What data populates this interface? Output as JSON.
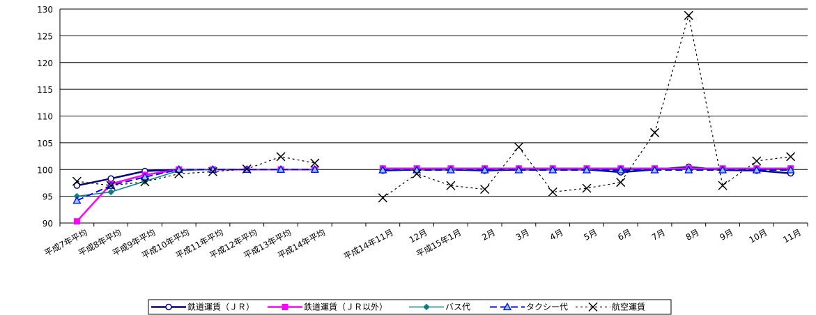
{
  "chart_data": {
    "type": "line",
    "title": "",
    "xlabel": "",
    "ylabel": "",
    "ylim": [
      90,
      130
    ],
    "yticks": [
      "90",
      "95",
      "100",
      "105",
      "110",
      "115",
      "120",
      "125",
      "130"
    ],
    "grid": "horizontal",
    "legend_position": "bottom",
    "categories": [
      "平成7年平均",
      "平成8年平均",
      "平成9年平均",
      "平成10年平均",
      "平成11年平均",
      "平成12年平均",
      "平成13年平均",
      "平成14年平均",
      "",
      "平成14年11月",
      "12月",
      "平成15年1月",
      "2月",
      "3月",
      "4月",
      "5月",
      "6月",
      "7月",
      "8月",
      "9月",
      "10月",
      "11月"
    ],
    "series": [
      {
        "name": "鉄道運賃（ＪＲ）",
        "color": "#000080",
        "marker": "circle",
        "dash": "solid",
        "values": [
          97.0,
          98.3,
          99.7,
          100.0,
          100.0,
          100.0,
          100.0,
          100.0,
          null,
          99.8,
          100.0,
          100.0,
          99.8,
          100.0,
          100.0,
          100.0,
          99.5,
          100.0,
          100.5,
          99.9,
          99.8,
          99.3
        ]
      },
      {
        "name": "鉄道運賃（ＪＲ以外）",
        "color": "#ff00ff",
        "marker": "square",
        "dash": "solid",
        "values": [
          90.3,
          97.3,
          99.0,
          100.0,
          100.0,
          100.0,
          100.0,
          100.0,
          null,
          100.2,
          100.2,
          100.2,
          100.2,
          100.2,
          100.2,
          100.2,
          100.2,
          100.2,
          100.2,
          100.2,
          100.2,
          100.2
        ]
      },
      {
        "name": "バス代",
        "color": "#008080",
        "marker": "diamond",
        "dash": "solid",
        "values": [
          95.0,
          95.8,
          97.8,
          99.8,
          100.0,
          100.0,
          100.0,
          100.0,
          null,
          100.0,
          100.0,
          100.0,
          100.0,
          100.0,
          100.0,
          100.0,
          100.0,
          100.0,
          100.0,
          100.0,
          100.0,
          100.0
        ]
      },
      {
        "name": "タクシー代",
        "color": "#0000ff",
        "marker": "triangle",
        "dash": "dash",
        "values": [
          94.2,
          97.0,
          98.6,
          100.0,
          100.0,
          100.0,
          100.0,
          100.0,
          null,
          99.9,
          99.9,
          99.9,
          99.9,
          99.9,
          99.9,
          99.9,
          99.9,
          99.9,
          99.9,
          99.9,
          99.9,
          99.9
        ]
      },
      {
        "name": "航空運賃",
        "color": "#000000",
        "marker": "x",
        "dash": "dot",
        "values": [
          97.8,
          97.0,
          97.7,
          99.2,
          99.6,
          100.1,
          102.4,
          101.2,
          null,
          94.7,
          99.2,
          97.0,
          96.3,
          104.2,
          95.8,
          96.5,
          97.6,
          106.9,
          128.8,
          97.0,
          101.6,
          102.4
        ]
      }
    ]
  }
}
